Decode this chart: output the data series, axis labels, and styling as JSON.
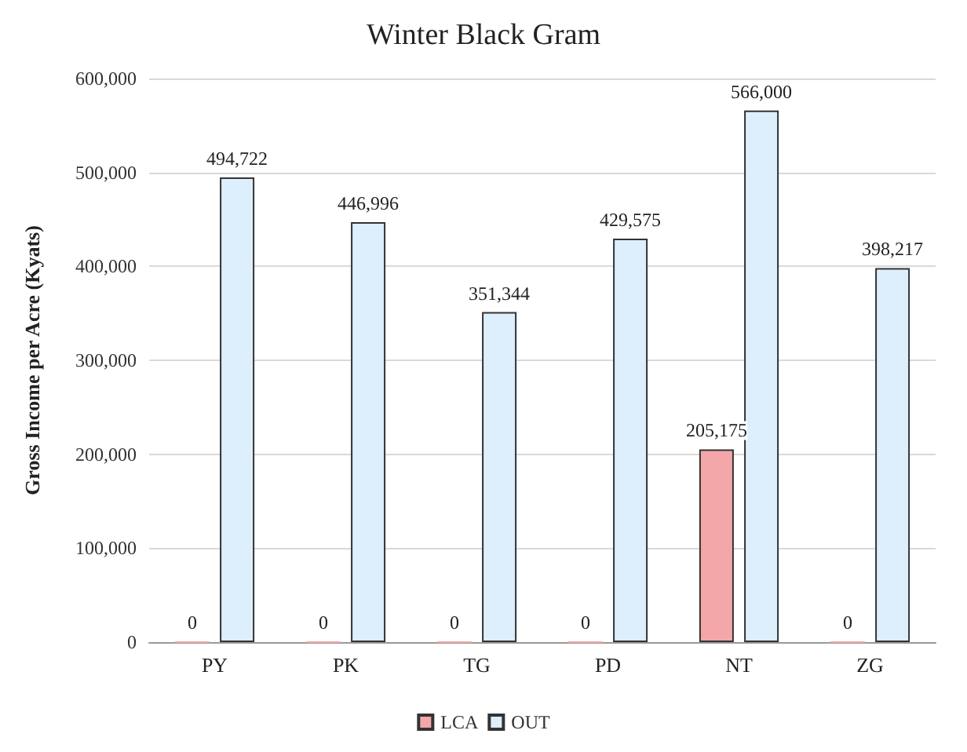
{
  "chart_data": {
    "type": "bar",
    "title": "Winter Black Gram",
    "ylabel": "Gross Income per Acre (Kyats)",
    "categories": [
      "PY",
      "PK",
      "TG",
      "PD",
      "NT",
      "ZG"
    ],
    "series": [
      {
        "name": "LCA",
        "color": "#f4a7a9",
        "values": [
          0,
          0,
          0,
          0,
          205175,
          0
        ],
        "value_labels": [
          "0",
          "0",
          "0",
          "0",
          "205,175",
          "0"
        ]
      },
      {
        "name": "OUT",
        "color": "#ddeefc",
        "values": [
          494722,
          446996,
          351344,
          429575,
          566000,
          398217
        ],
        "value_labels": [
          "494,722",
          "446,996",
          "351,344",
          "429,575",
          "566,000",
          "398,217"
        ]
      }
    ],
    "ylim": [
      0,
      600000
    ],
    "yticks": [
      0,
      {
        "value": 100000,
        "label": "100,000"
      },
      {
        "value": 200000,
        "label": "200,000"
      },
      {
        "value": 300000,
        "label": "300,000"
      },
      {
        "value": 400000,
        "label": "400,000"
      },
      {
        "value": 500000,
        "label": "500,000"
      },
      {
        "value": 600000,
        "label": "600,000"
      }
    ],
    "grid": "y",
    "legend": "bottom"
  }
}
